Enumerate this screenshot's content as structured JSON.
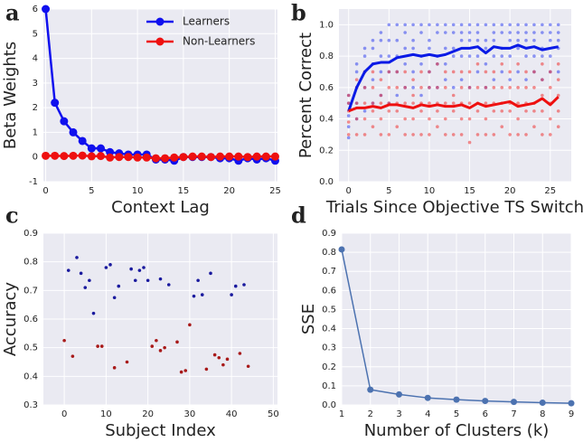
{
  "chart_data": [
    {
      "type": "line",
      "panel_label": "a",
      "xlabel": "Context Lag",
      "ylabel": "Beta Weights",
      "x": [
        0,
        1,
        2,
        3,
        4,
        5,
        6,
        7,
        8,
        9,
        10,
        11,
        12,
        13,
        14,
        15,
        16,
        17,
        18,
        19,
        20,
        21,
        22,
        23,
        24,
        25
      ],
      "xlim": [
        -0.25,
        25.25
      ],
      "ylim": [
        -1,
        6
      ],
      "xticks": [
        0,
        5,
        10,
        15,
        20,
        25
      ],
      "yticks": [
        -1,
        0,
        1,
        2,
        3,
        4,
        5,
        6
      ],
      "grid": true,
      "legend": "upper right",
      "series": [
        {
          "name": "Learners",
          "color": "#1010ee",
          "style": "line+markers",
          "values": [
            6.0,
            2.2,
            1.45,
            1.0,
            0.65,
            0.35,
            0.35,
            0.2,
            0.15,
            0.1,
            0.1,
            0.1,
            -0.1,
            -0.1,
            -0.15,
            0.0,
            0.0,
            0.0,
            0.0,
            -0.05,
            -0.05,
            -0.15,
            -0.05,
            -0.1,
            -0.05,
            -0.15
          ]
        },
        {
          "name": "Non-Learners",
          "color": "#ee1010",
          "style": "line+markers",
          "values": [
            0.05,
            0.05,
            0.04,
            0.05,
            0.06,
            0.03,
            0.04,
            -0.02,
            0.0,
            0.0,
            -0.02,
            -0.02,
            -0.05,
            -0.05,
            -0.02,
            0.0,
            0.02,
            0.02,
            0.0,
            0.02,
            0.02,
            0.02,
            0.0,
            0.02,
            0.02,
            0.02
          ]
        }
      ]
    },
    {
      "type": "line",
      "panel_label": "b",
      "xlabel": "Trials Since Objective TS Switch",
      "ylabel": "Percent Correct",
      "x": [
        0,
        1,
        2,
        3,
        4,
        5,
        6,
        7,
        8,
        9,
        10,
        11,
        12,
        13,
        14,
        15,
        16,
        17,
        18,
        19,
        20,
        21,
        22,
        23,
        24,
        25,
        26
      ],
      "xlim": [
        -1.2,
        27.6
      ],
      "ylim": [
        0,
        1.1
      ],
      "xticks": [
        0,
        5,
        10,
        15,
        20,
        25
      ],
      "yticks": [
        {
          "value": 0,
          "label": "0.0"
        },
        0.2,
        0.4,
        0.6,
        0.8,
        {
          "value": 1,
          "label": "1.0"
        }
      ],
      "grid": true,
      "series": [
        {
          "color": "#3344ee",
          "style": "markers",
          "values": [
            [
              0.28,
              0.35,
              0.42,
              0.5,
              0.55
            ],
            [
              0.4,
              0.5,
              0.6,
              0.7,
              0.75
            ],
            [
              0.45,
              0.6,
              0.7,
              0.8,
              0.85
            ],
            [
              0.5,
              0.65,
              0.75,
              0.85,
              0.9
            ],
            [
              0.55,
              0.7,
              0.8,
              0.9,
              0.95
            ],
            [
              0.5,
              0.7,
              0.8,
              0.9,
              1.0
            ],
            [
              0.55,
              0.7,
              0.8,
              0.9,
              1.0
            ],
            [
              0.6,
              0.75,
              0.85,
              0.95,
              1.0
            ],
            [
              0.6,
              0.7,
              0.85,
              0.9,
              1.0
            ],
            [
              0.55,
              0.75,
              0.8,
              0.95,
              1.0
            ],
            [
              0.6,
              0.7,
              0.85,
              0.9,
              1.0
            ],
            [
              0.6,
              0.75,
              0.8,
              0.95,
              1.0
            ],
            [
              0.65,
              0.75,
              0.85,
              0.95,
              1.0
            ],
            [
              0.6,
              0.8,
              0.85,
              0.95,
              1.0
            ],
            [
              0.65,
              0.8,
              0.9,
              0.95,
              1.0
            ],
            [
              0.6,
              0.8,
              0.9,
              0.95,
              1.0
            ],
            [
              0.7,
              0.8,
              0.9,
              0.95,
              1.0
            ],
            [
              0.6,
              0.75,
              0.85,
              0.9,
              1.0
            ],
            [
              0.65,
              0.8,
              0.9,
              0.95,
              1.0
            ],
            [
              0.7,
              0.8,
              0.85,
              0.95,
              1.0
            ],
            [
              0.65,
              0.8,
              0.9,
              0.95,
              1.0
            ],
            [
              0.7,
              0.85,
              0.9,
              0.95,
              1.0
            ],
            [
              0.65,
              0.8,
              0.9,
              0.95,
              1.0
            ],
            [
              0.7,
              0.8,
              0.9,
              0.95,
              1.0
            ],
            [
              0.65,
              0.8,
              0.85,
              0.95,
              1.0
            ],
            [
              0.7,
              0.8,
              0.9,
              0.95,
              1.0
            ],
            [
              0.7,
              0.85,
              0.9,
              0.95,
              1.0
            ]
          ]
        },
        {
          "color": "#ee3333",
          "style": "markers",
          "values": [
            [
              0.3,
              0.38,
              0.45,
              0.5,
              0.55
            ],
            [
              0.3,
              0.4,
              0.5,
              0.6,
              0.65
            ],
            [
              0.3,
              0.4,
              0.5,
              0.6,
              0.7
            ],
            [
              0.35,
              0.45,
              0.5,
              0.6,
              0.7
            ],
            [
              0.3,
              0.4,
              0.5,
              0.55,
              0.65
            ],
            [
              0.3,
              0.45,
              0.5,
              0.6,
              0.7
            ],
            [
              0.35,
              0.45,
              0.5,
              0.6,
              0.7
            ],
            [
              0.3,
              0.4,
              0.5,
              0.6,
              0.7
            ],
            [
              0.3,
              0.4,
              0.5,
              0.55,
              0.65
            ],
            [
              0.3,
              0.45,
              0.5,
              0.6,
              0.7
            ],
            [
              0.3,
              0.4,
              0.5,
              0.6,
              0.7
            ],
            [
              0.35,
              0.45,
              0.5,
              0.6,
              0.75
            ],
            [
              0.3,
              0.4,
              0.5,
              0.6,
              0.7
            ],
            [
              0.3,
              0.45,
              0.5,
              0.55,
              0.7
            ],
            [
              0.3,
              0.4,
              0.5,
              0.6,
              0.7
            ],
            [
              0.25,
              0.4,
              0.5,
              0.6,
              0.7
            ],
            [
              0.3,
              0.45,
              0.5,
              0.6,
              0.75
            ],
            [
              0.3,
              0.4,
              0.5,
              0.6,
              0.7
            ],
            [
              0.3,
              0.45,
              0.5,
              0.6,
              0.7
            ],
            [
              0.35,
              0.45,
              0.5,
              0.6,
              0.75
            ],
            [
              0.3,
              0.45,
              0.5,
              0.6,
              0.7
            ],
            [
              0.3,
              0.4,
              0.5,
              0.6,
              0.75
            ],
            [
              0.3,
              0.45,
              0.5,
              0.6,
              0.7
            ],
            [
              0.35,
              0.45,
              0.5,
              0.6,
              0.7
            ],
            [
              0.3,
              0.45,
              0.55,
              0.65,
              0.75
            ],
            [
              0.3,
              0.4,
              0.5,
              0.6,
              0.7
            ],
            [
              0.35,
              0.45,
              0.55,
              0.65,
              0.75
            ]
          ]
        },
        {
          "color": "#0a1ae6",
          "style": "line",
          "values": [
            0.45,
            0.6,
            0.7,
            0.75,
            0.76,
            0.76,
            0.79,
            0.8,
            0.81,
            0.8,
            0.81,
            0.8,
            0.81,
            0.83,
            0.85,
            0.85,
            0.86,
            0.82,
            0.86,
            0.85,
            0.85,
            0.87,
            0.85,
            0.86,
            0.84,
            0.85,
            0.86
          ]
        },
        {
          "color": "#ee1010",
          "style": "line",
          "values": [
            0.45,
            0.47,
            0.47,
            0.48,
            0.47,
            0.49,
            0.49,
            0.48,
            0.47,
            0.49,
            0.48,
            0.49,
            0.48,
            0.48,
            0.49,
            0.47,
            0.5,
            0.48,
            0.49,
            0.5,
            0.51,
            0.48,
            0.49,
            0.5,
            0.53,
            0.49,
            0.54
          ]
        }
      ]
    },
    {
      "type": "scatter",
      "panel_label": "c",
      "xlabel": "Subject Index",
      "ylabel": "Accuracy",
      "xlim": [
        -5,
        51
      ],
      "ylim": [
        0.3,
        0.9
      ],
      "xticks": [
        0,
        10,
        20,
        30,
        40,
        50
      ],
      "yticks": [
        0.3,
        0.4,
        0.5,
        0.6,
        0.7,
        0.8,
        0.9
      ],
      "grid": true,
      "series": [
        {
          "color": "#1a1a9e",
          "style": "markers",
          "x": [
            1,
            3,
            4,
            5,
            6,
            7,
            10,
            11,
            12,
            13,
            16,
            17,
            18,
            19,
            20,
            23,
            25,
            31,
            32,
            33,
            35,
            40,
            41,
            43
          ],
          "values": [
            0.77,
            0.815,
            0.76,
            0.71,
            0.735,
            0.62,
            0.78,
            0.79,
            0.675,
            0.715,
            0.775,
            0.735,
            0.77,
            0.78,
            0.735,
            0.74,
            0.72,
            0.68,
            0.735,
            0.685,
            0.76,
            0.685,
            0.715,
            0.72
          ]
        },
        {
          "color": "#a81a1a",
          "style": "markers",
          "x": [
            0,
            2,
            8,
            9,
            12,
            15,
            21,
            22,
            23,
            24,
            27,
            28,
            29,
            30,
            34,
            36,
            37,
            38,
            39,
            42,
            44
          ],
          "values": [
            0.525,
            0.47,
            0.505,
            0.505,
            0.43,
            0.45,
            0.505,
            0.525,
            0.49,
            0.5,
            0.52,
            0.415,
            0.42,
            0.58,
            0.425,
            0.475,
            0.465,
            0.44,
            0.46,
            0.48,
            0.435
          ]
        }
      ]
    },
    {
      "type": "line",
      "panel_label": "d",
      "xlabel": "Number of Clusters (k)",
      "ylabel": "SSE",
      "x": [
        1,
        2,
        3,
        4,
        5,
        6,
        7,
        8,
        9
      ],
      "xlim": [
        1,
        9
      ],
      "ylim": [
        0,
        0.9
      ],
      "xticks": [
        1,
        2,
        3,
        4,
        5,
        6,
        7,
        8,
        9
      ],
      "yticks": [
        {
          "value": 0,
          "label": "0.0"
        },
        0.1,
        0.2,
        0.3,
        0.4,
        0.5,
        0.6,
        0.7,
        0.8,
        0.9
      ],
      "grid": true,
      "series": [
        {
          "color": "#4c72b0",
          "style": "line+markers",
          "values": [
            0.815,
            0.08,
            0.055,
            0.037,
            0.028,
            0.021,
            0.016,
            0.012,
            0.009
          ]
        }
      ]
    }
  ]
}
